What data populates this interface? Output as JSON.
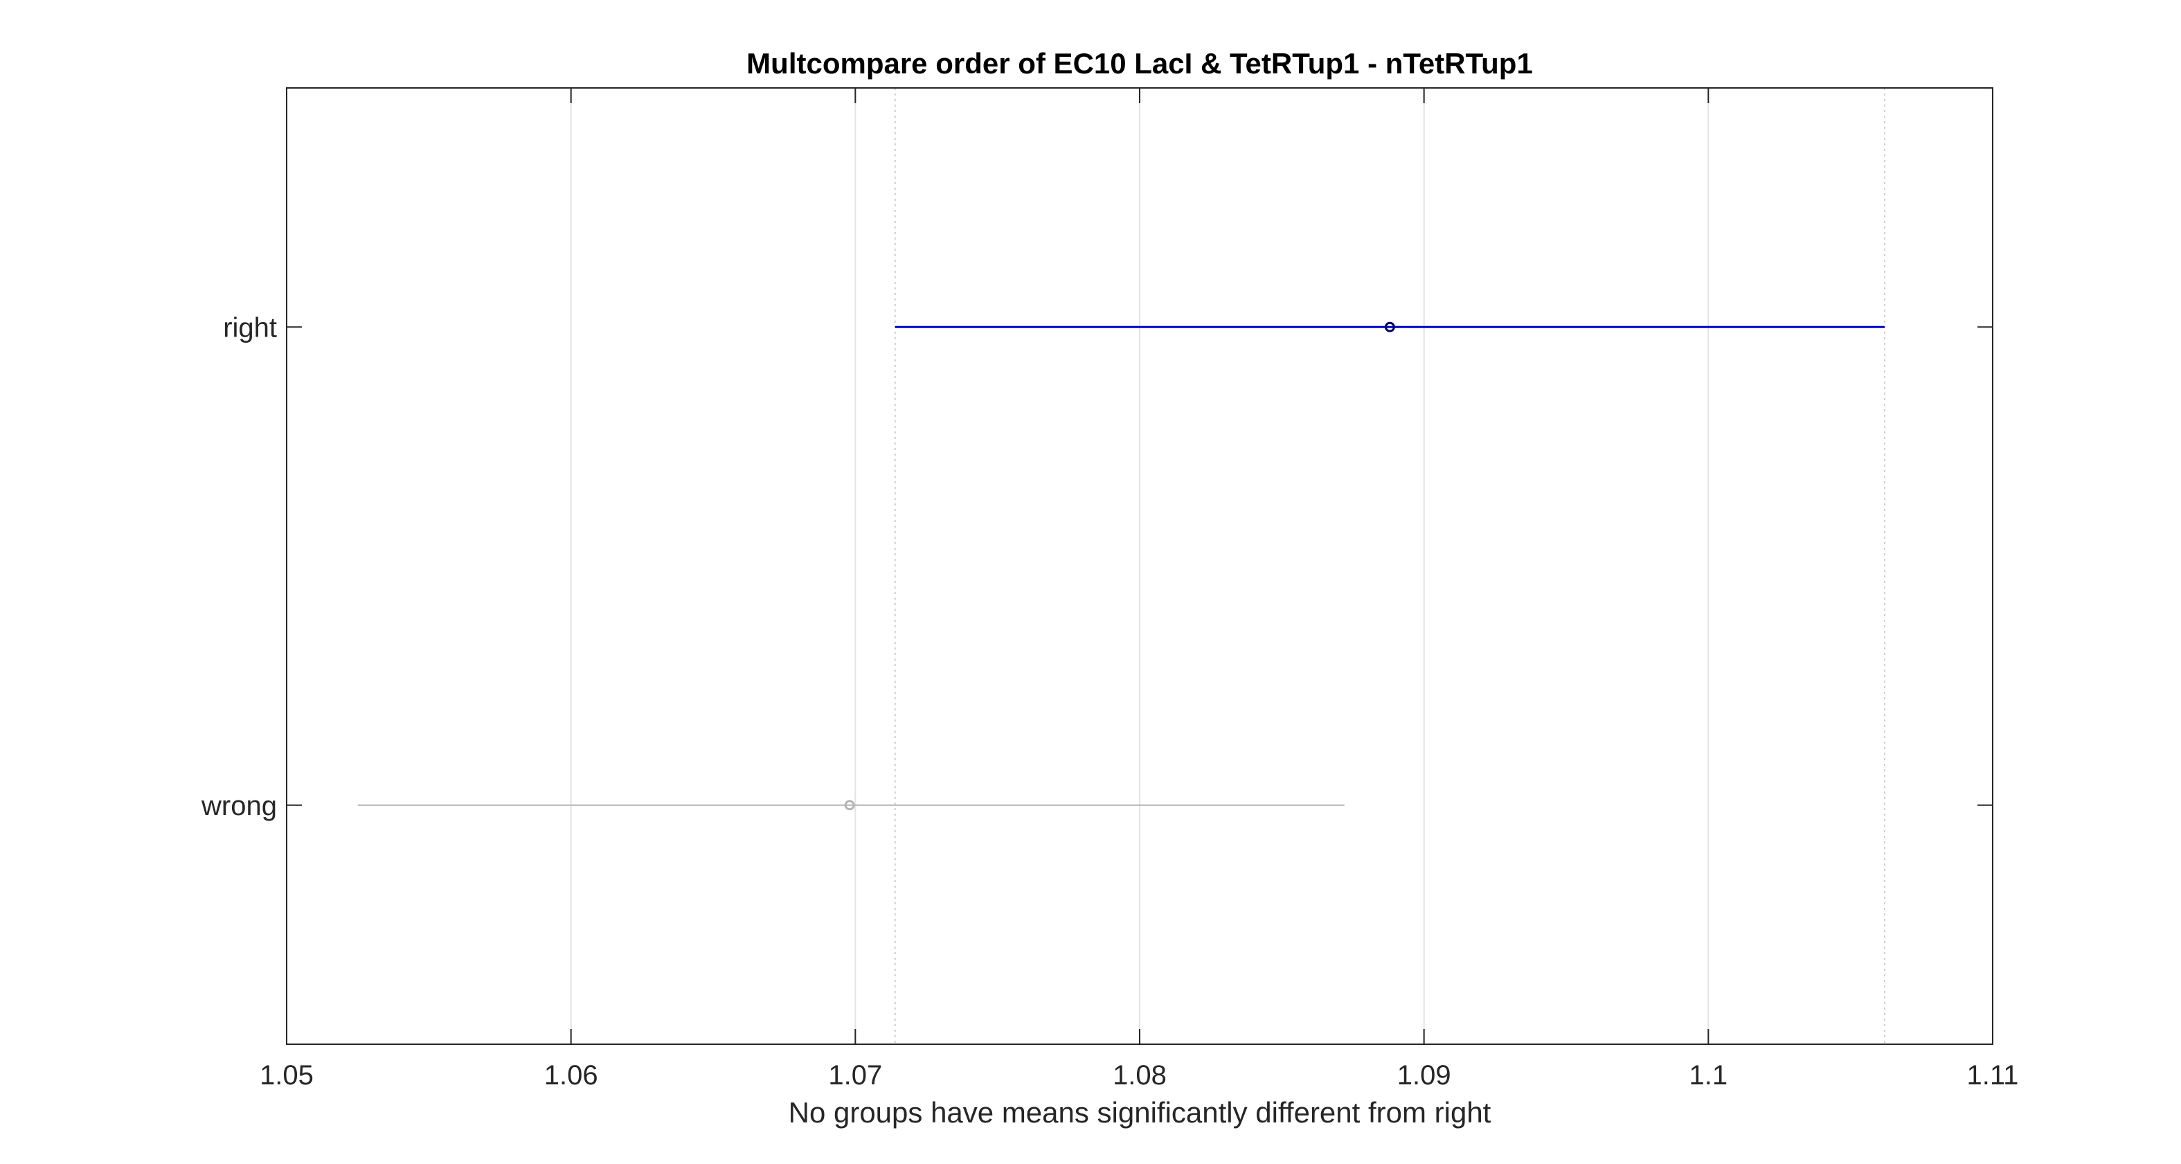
{
  "chart_data": {
    "type": "interval",
    "title": "Multcompare order of EC10 LacI & TetRTup1 - nTetRTup1",
    "xlabel": "No groups have means significantly different from right",
    "ylabel": "",
    "xlim": [
      1.05,
      1.11
    ],
    "xticks": [
      1.05,
      1.06,
      1.07,
      1.08,
      1.09,
      1.1,
      1.11
    ],
    "xtick_labels": [
      "1.05",
      "1.06",
      "1.07",
      "1.08",
      "1.09",
      "1.1",
      "1.11"
    ],
    "grid": "x-only (major vertical lines)",
    "categories": [
      "right",
      "wrong"
    ],
    "groups": [
      {
        "label": "right",
        "mean": 1.0888,
        "lower": 1.0714,
        "upper": 1.1062,
        "selected": true,
        "color": "#0000cc"
      },
      {
        "label": "wrong",
        "mean": 1.0698,
        "lower": 1.0525,
        "upper": 1.0872,
        "selected": false,
        "color": "#b4b4b4"
      }
    ],
    "reference_lines": [
      1.0714,
      1.1062
    ],
    "reference_line_color": "#cfcfcf"
  }
}
